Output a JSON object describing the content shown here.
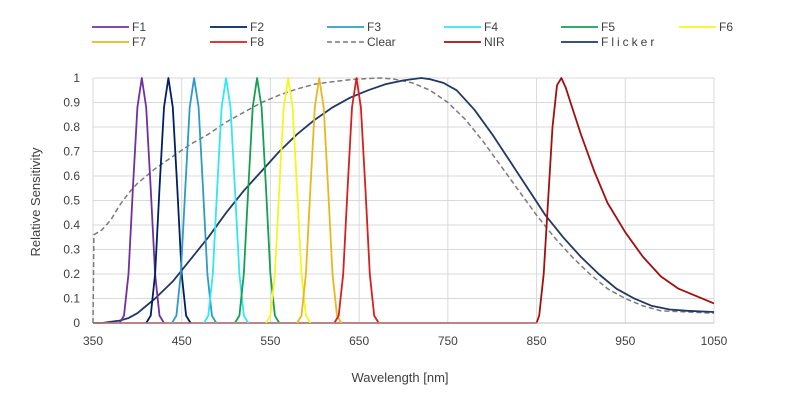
{
  "chart_data": {
    "type": "line",
    "title": "",
    "xlabel": "Wavelength [nm]",
    "ylabel": "Relative Sensitivity",
    "xlim": [
      350,
      1050
    ],
    "ylim": [
      0,
      1
    ],
    "x_ticks": [
      "350",
      "450",
      "550",
      "650",
      "750",
      "850",
      "950",
      "1050"
    ],
    "y_ticks": [
      "0",
      "0.1",
      "0.2",
      "0.3",
      "0.4",
      "0.5",
      "0.6",
      "0.7",
      "0.8",
      "0.9",
      "1"
    ],
    "grid": true,
    "legend_position": "top",
    "series": [
      {
        "name": "F1",
        "color": "#7030a0",
        "style": "solid",
        "points": [
          [
            380,
            0
          ],
          [
            385,
            0.03
          ],
          [
            390,
            0.2
          ],
          [
            395,
            0.55
          ],
          [
            400,
            0.88
          ],
          [
            405,
            1
          ],
          [
            410,
            0.88
          ],
          [
            415,
            0.55
          ],
          [
            420,
            0.2
          ],
          [
            425,
            0.03
          ],
          [
            430,
            0
          ]
        ]
      },
      {
        "name": "F2",
        "color": "#002060",
        "style": "solid",
        "points": [
          [
            410,
            0
          ],
          [
            415,
            0.03
          ],
          [
            420,
            0.2
          ],
          [
            425,
            0.55
          ],
          [
            430,
            0.88
          ],
          [
            435,
            1
          ],
          [
            440,
            0.88
          ],
          [
            445,
            0.55
          ],
          [
            450,
            0.2
          ],
          [
            455,
            0.03
          ],
          [
            460,
            0
          ]
        ]
      },
      {
        "name": "F3",
        "color": "#2e9bc6",
        "style": "solid",
        "points": [
          [
            439,
            0
          ],
          [
            444,
            0.03
          ],
          [
            449,
            0.2
          ],
          [
            454,
            0.55
          ],
          [
            459,
            0.88
          ],
          [
            464,
            1
          ],
          [
            469,
            0.88
          ],
          [
            474,
            0.55
          ],
          [
            479,
            0.2
          ],
          [
            484,
            0.03
          ],
          [
            489,
            0
          ]
        ]
      },
      {
        "name": "F4",
        "color": "#33e6f2",
        "style": "solid",
        "points": [
          [
            475,
            0
          ],
          [
            480,
            0.03
          ],
          [
            485,
            0.2
          ],
          [
            490,
            0.55
          ],
          [
            495,
            0.88
          ],
          [
            500,
            1
          ],
          [
            505,
            0.88
          ],
          [
            510,
            0.55
          ],
          [
            515,
            0.2
          ],
          [
            520,
            0.03
          ],
          [
            525,
            0
          ]
        ]
      },
      {
        "name": "F5",
        "color": "#14a050",
        "style": "solid",
        "points": [
          [
            510,
            0
          ],
          [
            515,
            0.03
          ],
          [
            520,
            0.2
          ],
          [
            525,
            0.55
          ],
          [
            530,
            0.88
          ],
          [
            535,
            1
          ],
          [
            540,
            0.88
          ],
          [
            545,
            0.55
          ],
          [
            550,
            0.2
          ],
          [
            555,
            0.03
          ],
          [
            560,
            0
          ]
        ]
      },
      {
        "name": "F6",
        "color": "#f5f520",
        "style": "solid",
        "points": [
          [
            545,
            0
          ],
          [
            550,
            0.03
          ],
          [
            555,
            0.2
          ],
          [
            560,
            0.55
          ],
          [
            565,
            0.88
          ],
          [
            570,
            1
          ],
          [
            575,
            0.88
          ],
          [
            580,
            0.55
          ],
          [
            585,
            0.2
          ],
          [
            590,
            0.03
          ],
          [
            595,
            0
          ]
        ]
      },
      {
        "name": "F7",
        "color": "#e8b820",
        "style": "solid",
        "points": [
          [
            580,
            0
          ],
          [
            585,
            0.03
          ],
          [
            590,
            0.2
          ],
          [
            595,
            0.55
          ],
          [
            600,
            0.88
          ],
          [
            605,
            1
          ],
          [
            610,
            0.88
          ],
          [
            615,
            0.55
          ],
          [
            620,
            0.2
          ],
          [
            625,
            0.03
          ],
          [
            630,
            0
          ]
        ]
      },
      {
        "name": "F8",
        "color": "#d42020",
        "style": "solid",
        "points": [
          [
            622,
            0
          ],
          [
            627,
            0.03
          ],
          [
            632,
            0.2
          ],
          [
            637,
            0.55
          ],
          [
            642,
            0.88
          ],
          [
            647,
            1
          ],
          [
            652,
            0.88
          ],
          [
            657,
            0.55
          ],
          [
            662,
            0.2
          ],
          [
            667,
            0.03
          ],
          [
            672,
            0
          ]
        ]
      },
      {
        "name": "Clear",
        "color": "#7a7a7a",
        "style": "dashed",
        "points": [
          [
            350,
            0
          ],
          [
            351,
            0.36
          ],
          [
            360,
            0.38
          ],
          [
            370,
            0.42
          ],
          [
            380,
            0.48
          ],
          [
            390,
            0.53
          ],
          [
            400,
            0.57
          ],
          [
            420,
            0.63
          ],
          [
            440,
            0.68
          ],
          [
            460,
            0.73
          ],
          [
            480,
            0.77
          ],
          [
            500,
            0.82
          ],
          [
            520,
            0.86
          ],
          [
            540,
            0.9
          ],
          [
            560,
            0.93
          ],
          [
            580,
            0.955
          ],
          [
            600,
            0.975
          ],
          [
            620,
            0.985
          ],
          [
            640,
            0.993
          ],
          [
            660,
            0.998
          ],
          [
            675,
            1
          ],
          [
            690,
            0.995
          ],
          [
            710,
            0.98
          ],
          [
            730,
            0.95
          ],
          [
            750,
            0.9
          ],
          [
            770,
            0.83
          ],
          [
            790,
            0.74
          ],
          [
            810,
            0.64
          ],
          [
            830,
            0.54
          ],
          [
            850,
            0.44
          ],
          [
            870,
            0.35
          ],
          [
            890,
            0.27
          ],
          [
            910,
            0.2
          ],
          [
            930,
            0.14
          ],
          [
            950,
            0.1
          ],
          [
            970,
            0.07
          ],
          [
            990,
            0.05
          ],
          [
            1020,
            0.045
          ],
          [
            1050,
            0.04
          ]
        ]
      },
      {
        "name": "NIR",
        "color": "#a01010",
        "style": "solid",
        "points": [
          [
            350,
            0
          ],
          [
            850,
            0
          ],
          [
            853,
            0.03
          ],
          [
            858,
            0.2
          ],
          [
            863,
            0.5
          ],
          [
            868,
            0.8
          ],
          [
            873,
            0.97
          ],
          [
            878,
            1
          ],
          [
            883,
            0.96
          ],
          [
            890,
            0.88
          ],
          [
            900,
            0.77
          ],
          [
            915,
            0.62
          ],
          [
            930,
            0.49
          ],
          [
            950,
            0.37
          ],
          [
            970,
            0.27
          ],
          [
            990,
            0.19
          ],
          [
            1010,
            0.14
          ],
          [
            1030,
            0.11
          ],
          [
            1050,
            0.08
          ]
        ]
      },
      {
        "name": "Flicker",
        "color": "#1f3864",
        "style": "solid",
        "points": [
          [
            350,
            0
          ],
          [
            360,
            0
          ],
          [
            370,
            0.005
          ],
          [
            380,
            0.01
          ],
          [
            390,
            0.02
          ],
          [
            400,
            0.04
          ],
          [
            420,
            0.1
          ],
          [
            440,
            0.17
          ],
          [
            460,
            0.26
          ],
          [
            480,
            0.35
          ],
          [
            500,
            0.45
          ],
          [
            520,
            0.54
          ],
          [
            540,
            0.62
          ],
          [
            560,
            0.7
          ],
          [
            580,
            0.77
          ],
          [
            600,
            0.83
          ],
          [
            620,
            0.88
          ],
          [
            640,
            0.92
          ],
          [
            660,
            0.95
          ],
          [
            680,
            0.975
          ],
          [
            700,
            0.99
          ],
          [
            720,
            1
          ],
          [
            730,
            0.995
          ],
          [
            745,
            0.98
          ],
          [
            760,
            0.95
          ],
          [
            780,
            0.87
          ],
          [
            800,
            0.77
          ],
          [
            820,
            0.66
          ],
          [
            840,
            0.55
          ],
          [
            860,
            0.44
          ],
          [
            880,
            0.35
          ],
          [
            900,
            0.27
          ],
          [
            920,
            0.2
          ],
          [
            940,
            0.14
          ],
          [
            960,
            0.1
          ],
          [
            980,
            0.07
          ],
          [
            1000,
            0.055
          ],
          [
            1020,
            0.05
          ],
          [
            1050,
            0.045
          ]
        ]
      }
    ]
  }
}
